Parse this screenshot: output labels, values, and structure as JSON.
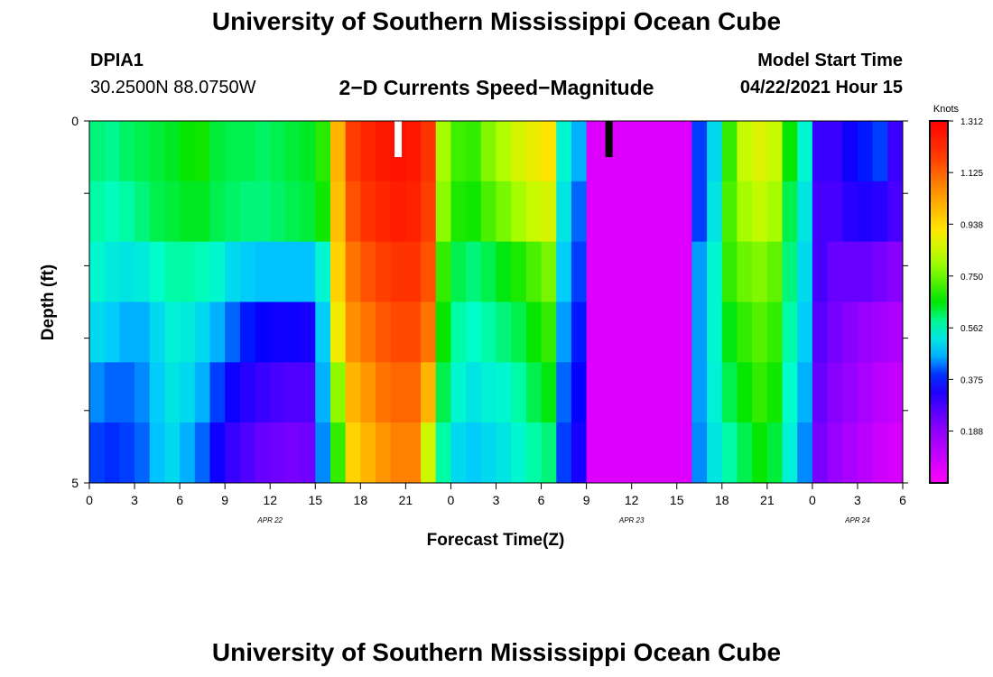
{
  "header": {
    "title": "University of Southern Mississippi Ocean Cube",
    "station_id": "DPIA1",
    "coordinates": "30.2500N  88.0750W",
    "chart_title": "2−D Currents Speed−Magnitude",
    "model_label": "Model Start Time",
    "model_time": "04/22/2021 Hour 15"
  },
  "footer": {
    "title": "University of Southern Mississippi Ocean Cube"
  },
  "chart_data": {
    "type": "heatmap",
    "title": "2−D Currents Speed−Magnitude",
    "xlabel": "Forecast Time(Z)",
    "ylabel": "Depth (ft)",
    "x_tick_labels": [
      "0",
      "3",
      "6",
      "9",
      "12",
      "15",
      "18",
      "21",
      "0",
      "3",
      "6",
      "9",
      "12",
      "15",
      "18",
      "21",
      "0",
      "3",
      "6"
    ],
    "date_labels": [
      {
        "text": "APR  22",
        "hour": 12
      },
      {
        "text": "APR  23",
        "hour": 36
      },
      {
        "text": "APR  24",
        "hour": 51
      }
    ],
    "y_tick_labels": [
      "0",
      "5"
    ],
    "ylim": [
      0,
      5
    ],
    "depth_levels": 5,
    "colorbar": {
      "label": "Knots",
      "ticks": [
        "1.312",
        "1.125",
        "0.938",
        "0.750",
        "0.562",
        "0.375",
        "0.188"
      ],
      "min": 0.0,
      "max": 1.312
    },
    "markers": [
      {
        "hour": 20.5,
        "color": "#ffffff"
      },
      {
        "hour": 34.5,
        "color": "#000000"
      }
    ],
    "hours": [
      0,
      1,
      2,
      3,
      4,
      5,
      6,
      7,
      8,
      9,
      10,
      11,
      12,
      13,
      14,
      15,
      16,
      17,
      18,
      19,
      20,
      21,
      22,
      23,
      24,
      25,
      26,
      27,
      28,
      29,
      30,
      31,
      32,
      33,
      34,
      35,
      36,
      37,
      38,
      39,
      40,
      41,
      42,
      43,
      44,
      45,
      46,
      47,
      48,
      49,
      50,
      51,
      52,
      53,
      54
    ],
    "speeds_by_depth": [
      [
        0.6,
        0.59,
        0.61,
        0.62,
        0.63,
        0.64,
        0.66,
        0.67,
        0.63,
        0.62,
        0.62,
        0.61,
        0.62,
        0.63,
        0.64,
        0.69,
        1.0,
        1.18,
        1.23,
        1.26,
        1.27,
        1.26,
        1.2,
        0.8,
        0.71,
        0.7,
        0.77,
        0.81,
        0.86,
        0.89,
        0.92,
        0.55,
        0.46,
        0.06,
        0.06,
        0.06,
        0.06,
        0.06,
        0.06,
        0.06,
        0.4,
        0.5,
        0.7,
        0.84,
        0.87,
        0.84,
        0.66,
        0.55,
        0.3,
        0.3,
        0.35,
        0.38,
        0.4,
        0.3,
        0.2
      ],
      [
        0.58,
        0.57,
        0.58,
        0.6,
        0.62,
        0.63,
        0.64,
        0.64,
        0.62,
        0.61,
        0.6,
        0.6,
        0.61,
        0.62,
        0.63,
        0.67,
        0.98,
        1.15,
        1.2,
        1.23,
        1.25,
        1.24,
        1.18,
        0.78,
        0.68,
        0.67,
        0.72,
        0.76,
        0.8,
        0.84,
        0.86,
        0.52,
        0.42,
        0.06,
        0.06,
        0.06,
        0.06,
        0.06,
        0.06,
        0.06,
        0.4,
        0.52,
        0.72,
        0.8,
        0.83,
        0.8,
        0.62,
        0.52,
        0.28,
        0.28,
        0.32,
        0.33,
        0.32,
        0.28,
        0.2
      ],
      [
        0.55,
        0.53,
        0.52,
        0.53,
        0.56,
        0.58,
        0.58,
        0.57,
        0.55,
        0.5,
        0.48,
        0.47,
        0.47,
        0.47,
        0.47,
        0.55,
        0.95,
        1.1,
        1.15,
        1.18,
        1.2,
        1.2,
        1.15,
        0.7,
        0.62,
        0.6,
        0.62,
        0.65,
        0.68,
        0.72,
        0.76,
        0.48,
        0.4,
        0.06,
        0.06,
        0.06,
        0.06,
        0.06,
        0.06,
        0.06,
        0.45,
        0.55,
        0.7,
        0.75,
        0.77,
        0.74,
        0.6,
        0.5,
        0.28,
        0.24,
        0.24,
        0.24,
        0.22,
        0.2,
        0.16
      ],
      [
        0.5,
        0.48,
        0.46,
        0.46,
        0.5,
        0.54,
        0.53,
        0.5,
        0.46,
        0.42,
        0.38,
        0.36,
        0.35,
        0.35,
        0.34,
        0.48,
        0.9,
        1.06,
        1.1,
        1.14,
        1.16,
        1.16,
        1.1,
        0.66,
        0.58,
        0.56,
        0.58,
        0.6,
        0.62,
        0.66,
        0.7,
        0.45,
        0.38,
        0.06,
        0.06,
        0.06,
        0.06,
        0.06,
        0.06,
        0.06,
        0.45,
        0.55,
        0.65,
        0.7,
        0.73,
        0.7,
        0.58,
        0.48,
        0.26,
        0.22,
        0.2,
        0.18,
        0.16,
        0.14,
        0.12
      ],
      [
        0.44,
        0.42,
        0.42,
        0.44,
        0.48,
        0.52,
        0.5,
        0.46,
        0.4,
        0.35,
        0.32,
        0.3,
        0.28,
        0.27,
        0.27,
        0.46,
        0.78,
        1.0,
        1.05,
        1.1,
        1.12,
        1.12,
        1.0,
        0.62,
        0.55,
        0.52,
        0.54,
        0.55,
        0.58,
        0.62,
        0.65,
        0.42,
        0.36,
        0.06,
        0.06,
        0.06,
        0.06,
        0.06,
        0.06,
        0.06,
        0.45,
        0.54,
        0.62,
        0.66,
        0.7,
        0.67,
        0.56,
        0.46,
        0.24,
        0.2,
        0.18,
        0.15,
        0.12,
        0.1,
        0.09
      ],
      [
        0.4,
        0.39,
        0.4,
        0.42,
        0.47,
        0.5,
        0.46,
        0.42,
        0.35,
        0.3,
        0.27,
        0.24,
        0.23,
        0.22,
        0.23,
        0.44,
        0.7,
        0.95,
        1.0,
        1.05,
        1.08,
        1.08,
        0.85,
        0.58,
        0.5,
        0.48,
        0.5,
        0.52,
        0.55,
        0.58,
        0.6,
        0.4,
        0.34,
        0.06,
        0.06,
        0.06,
        0.06,
        0.06,
        0.06,
        0.06,
        0.44,
        0.52,
        0.58,
        0.62,
        0.66,
        0.63,
        0.54,
        0.44,
        0.22,
        0.18,
        0.15,
        0.12,
        0.09,
        0.07,
        0.06
      ]
    ]
  }
}
